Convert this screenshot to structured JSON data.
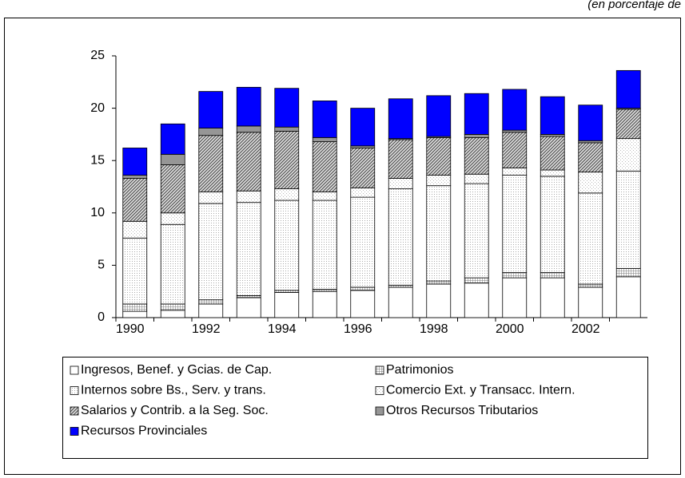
{
  "chart_data": {
    "type": "stacked_bar",
    "note": "(en porcentaje de",
    "categories": [
      "1990",
      null,
      "1992",
      null,
      "1994",
      null,
      "1996",
      null,
      "1998",
      null,
      "2000",
      null,
      "2002",
      null
    ],
    "series": [
      {
        "name": "Ingresos, Benef. y Gcias. de Cap.",
        "color": "#ffffff",
        "pattern": "none",
        "values": [
          0.6,
          0.7,
          1.3,
          1.9,
          2.4,
          2.5,
          2.6,
          2.9,
          3.2,
          3.3,
          3.8,
          3.8,
          2.9,
          3.9
        ]
      },
      {
        "name": "Patrimonios",
        "color": "#c8c8c8",
        "pattern": "grid",
        "values": [
          0.7,
          0.6,
          0.4,
          0.2,
          0.2,
          0.2,
          0.3,
          0.2,
          0.3,
          0.5,
          0.5,
          0.5,
          0.3,
          0.8
        ]
      },
      {
        "name": "Internos sobre Bs., Serv. y trans.",
        "color": "#e4e4e4",
        "pattern": "dots",
        "values": [
          6.3,
          7.6,
          9.2,
          8.9,
          8.6,
          8.5,
          8.6,
          9.2,
          9.1,
          9.0,
          9.3,
          9.2,
          8.7,
          9.3
        ]
      },
      {
        "name": "Comercio Ext. y Transacc. Intern.",
        "color": "#f2f2f2",
        "pattern": "fine",
        "values": [
          1.6,
          1.1,
          1.1,
          1.1,
          1.1,
          0.8,
          0.9,
          1.0,
          1.0,
          0.9,
          0.7,
          0.6,
          2.0,
          3.1
        ]
      },
      {
        "name": "Salarios y Contrib. a la Seg. Soc.",
        "color": "#a0a0a0",
        "pattern": "hatch",
        "values": [
          4.1,
          4.6,
          5.4,
          5.6,
          5.5,
          4.8,
          3.8,
          3.7,
          3.6,
          3.5,
          3.4,
          3.2,
          2.8,
          2.8
        ]
      },
      {
        "name": "Otros Recursos Tributarios",
        "color": "#969696",
        "pattern": "none",
        "values": [
          0.3,
          1.0,
          0.7,
          0.6,
          0.4,
          0.4,
          0.2,
          0.1,
          0.1,
          0.3,
          0.2,
          0.2,
          0.2,
          0.1
        ]
      },
      {
        "name": "Recursos Provinciales",
        "color": "#0000ff",
        "pattern": "none",
        "values": [
          2.6,
          2.9,
          3.5,
          3.7,
          3.7,
          3.5,
          3.6,
          3.8,
          3.9,
          3.9,
          3.9,
          3.6,
          3.4,
          3.6
        ]
      }
    ],
    "ylim": [
      0,
      25
    ],
    "yticks": [
      0,
      5,
      10,
      15,
      20,
      25
    ],
    "grid": false
  }
}
